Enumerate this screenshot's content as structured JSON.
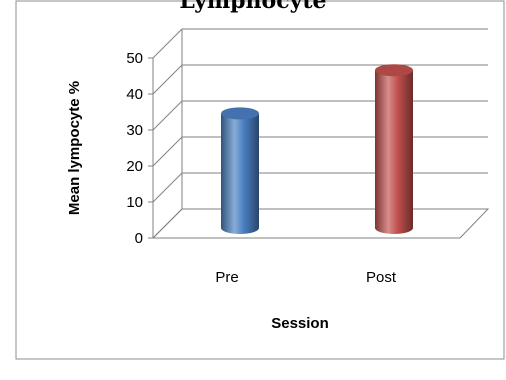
{
  "chart_data": {
    "type": "bar",
    "title": "Lymphocyte",
    "xlabel": "Session",
    "ylabel": "Mean lympocyte %",
    "categories": [
      "Pre",
      "Post"
    ],
    "values": [
      31,
      43
    ],
    "ylim": [
      0,
      50
    ],
    "yticks": [
      "0",
      "10",
      "20",
      "30",
      "40",
      "50"
    ],
    "grid": true,
    "legend": "none",
    "colors": [
      "#4a7fc1",
      "#c0504d"
    ]
  }
}
